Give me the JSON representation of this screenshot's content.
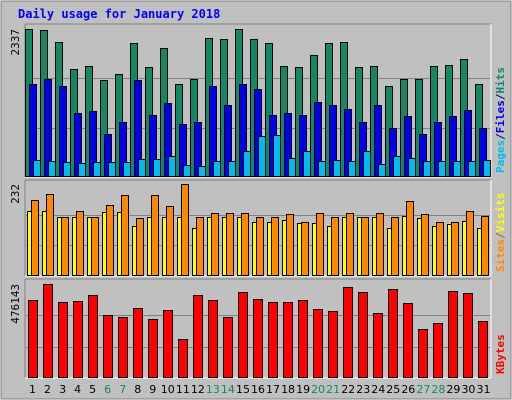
{
  "chart_data": [
    {
      "type": "bar",
      "title": "Daily usage for January 2018",
      "max_label": "2337",
      "right_labels": [
        {
          "text": "Pages",
          "color": "#00bbee"
        },
        {
          "text": "/",
          "color": "#000088"
        },
        {
          "text": "Files",
          "color": "#0000ee"
        },
        {
          "text": "/",
          "color": "#000088"
        },
        {
          "text": "Hits",
          "color": "#118866"
        }
      ],
      "categories": [
        "1",
        "2",
        "3",
        "4",
        "5",
        "6",
        "7",
        "8",
        "9",
        "10",
        "11",
        "12",
        "13",
        "14",
        "15",
        "16",
        "17",
        "18",
        "19",
        "20",
        "21",
        "22",
        "23",
        "24",
        "25",
        "26",
        "27",
        "28",
        "29",
        "30",
        "31"
      ],
      "series": [
        {
          "name": "Hits",
          "color": "#118866",
          "values": [
            2337,
            2315,
            2135,
            1710,
            1760,
            1532,
            1623,
            2115,
            1743,
            2037,
            1476,
            1543,
            2196,
            2184,
            2337,
            2185,
            2115,
            1753,
            1743,
            1932,
            2115,
            2135,
            1743,
            1753,
            1432,
            1543,
            1543,
            1753,
            1776,
            1865,
            1476
          ]
        },
        {
          "name": "Files",
          "color": "#0000ee",
          "values": [
            1476,
            1543,
            1432,
            1015,
            1037,
            672,
            876,
            1532,
            976,
            1176,
            832,
            876,
            1443,
            1132,
            1465,
            1387,
            976,
            1015,
            976,
            1187,
            1143,
            1076,
            876,
            1143,
            776,
            965,
            676,
            876,
            965,
            1065,
            776
          ]
        },
        {
          "name": "Pages",
          "color": "#00bbee",
          "values": [
            270,
            245,
            235,
            225,
            230,
            230,
            235,
            285,
            290,
            337,
            195,
            175,
            250,
            260,
            410,
            640,
            665,
            295,
            410,
            255,
            275,
            260,
            405,
            210,
            325,
            305,
            260,
            255,
            250,
            250,
            265
          ]
        }
      ]
    },
    {
      "type": "bar",
      "max_label": "232",
      "right_labels": [
        {
          "text": "Sites",
          "color": "#ff8800"
        },
        {
          "text": "/",
          "color": "#aa6600"
        },
        {
          "text": "Visits",
          "color": "#ffff00"
        }
      ],
      "series": [
        {
          "name": "Visits",
          "color": "#ffff00",
          "values": [
            165,
            165,
            150,
            150,
            150,
            162,
            162,
            125,
            150,
            150,
            150,
            120,
            150,
            150,
            150,
            136,
            136,
            142,
            134,
            134,
            125,
            150,
            150,
            150,
            122,
            152,
            145,
            125,
            130,
            138,
            120
          ]
        },
        {
          "name": "Sites",
          "color": "#ff8800",
          "values": [
            192,
            208,
            150,
            165,
            150,
            178,
            203,
            146,
            203,
            176,
            232,
            150,
            159,
            159,
            159,
            150,
            150,
            156,
            136,
            159,
            150,
            159,
            150,
            159,
            150,
            190,
            156,
            136,
            136,
            163,
            152
          ]
        }
      ]
    },
    {
      "type": "bar",
      "max_label": "476143",
      "right_labels": [
        {
          "text": "KBytes",
          "color": "#ff0000"
        }
      ],
      "series": [
        {
          "name": "KBytes",
          "color": "#ff0000",
          "values": [
            397000,
            476143,
            385000,
            392000,
            421000,
            318000,
            311000,
            353000,
            297000,
            346000,
            196000,
            421000,
            393000,
            311000,
            436000,
            400000,
            385000,
            385000,
            394000,
            348000,
            341000,
            462000,
            434000,
            329000,
            449000,
            381000,
            248000,
            281000,
            440000,
            430000,
            288000
          ]
        }
      ]
    }
  ],
  "x_label_colors": [
    "#000000",
    "#000000",
    "#000000",
    "#000000",
    "#000000",
    "#118866",
    "#118866",
    "#000000",
    "#000000",
    "#000000",
    "#000000",
    "#000000",
    "#118866",
    "#118866",
    "#000000",
    "#000000",
    "#000000",
    "#000000",
    "#000000",
    "#118866",
    "#118866",
    "#000000",
    "#000000",
    "#000000",
    "#000000",
    "#000000",
    "#118866",
    "#118866",
    "#000000",
    "#000000",
    "#000000"
  ]
}
